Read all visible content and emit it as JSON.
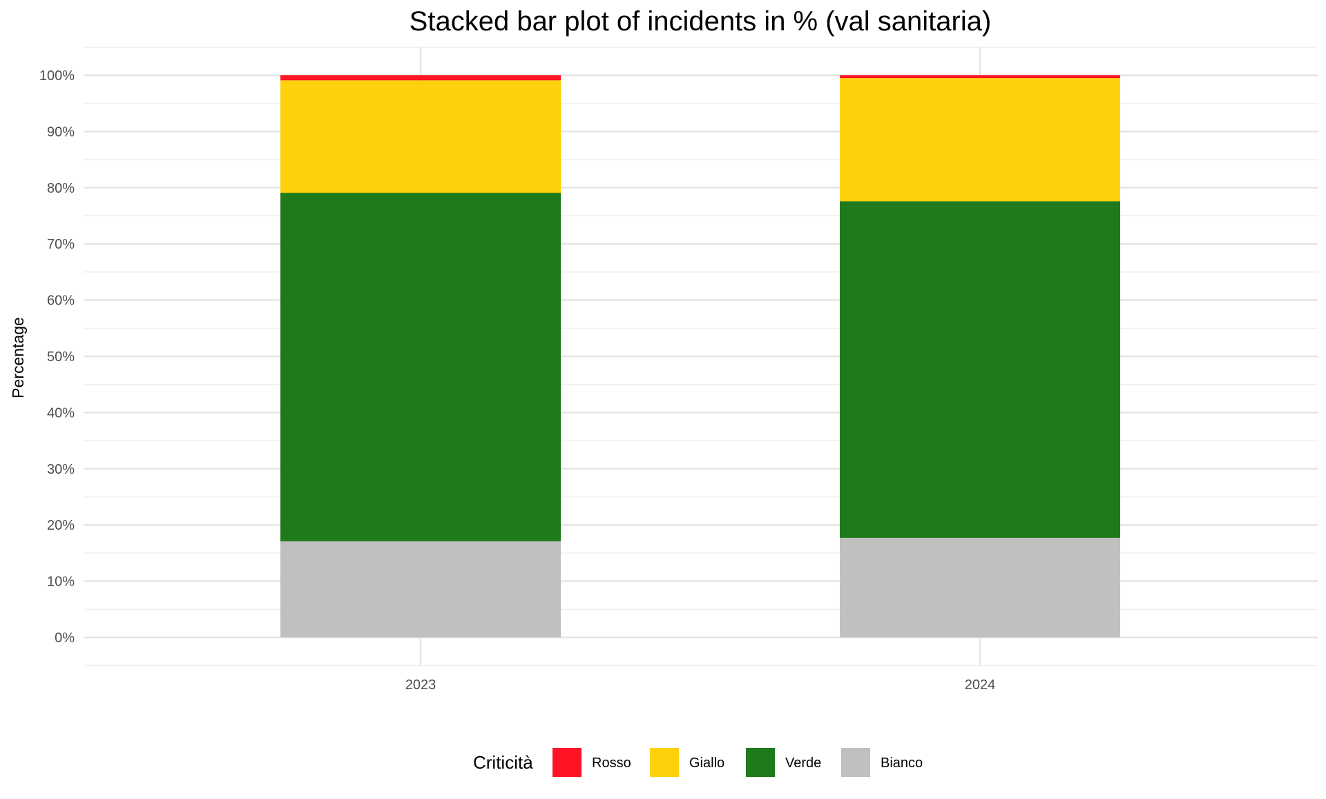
{
  "chart_data": {
    "type": "bar",
    "stacked": true,
    "title": "Stacked bar plot of incidents in % (val sanitaria)",
    "xlabel": "",
    "ylabel": "Percentage",
    "ylim": [
      0,
      100
    ],
    "y_ticks": [
      0,
      10,
      20,
      30,
      40,
      50,
      60,
      70,
      80,
      90,
      100
    ],
    "y_tick_labels": [
      "0%",
      "10%",
      "20%",
      "30%",
      "40%",
      "50%",
      "60%",
      "70%",
      "80%",
      "90%",
      "100%"
    ],
    "categories": [
      "2023",
      "2024"
    ],
    "series": [
      {
        "name": "Bianco",
        "color": "#C0C0C0",
        "values": [
          17.1,
          17.7
        ]
      },
      {
        "name": "Verde",
        "color": "#1F7A1C",
        "values": [
          62.0,
          59.9
        ]
      },
      {
        "name": "Giallo",
        "color": "#FFD10A",
        "values": [
          20.0,
          21.9
        ]
      },
      {
        "name": "Rosso",
        "color": "#FF1426",
        "values": [
          0.9,
          0.5
        ]
      }
    ],
    "legend": {
      "title": "Criticità",
      "position": "bottom",
      "order": [
        "Rosso",
        "Giallo",
        "Verde",
        "Bianco"
      ]
    },
    "grid": true
  }
}
